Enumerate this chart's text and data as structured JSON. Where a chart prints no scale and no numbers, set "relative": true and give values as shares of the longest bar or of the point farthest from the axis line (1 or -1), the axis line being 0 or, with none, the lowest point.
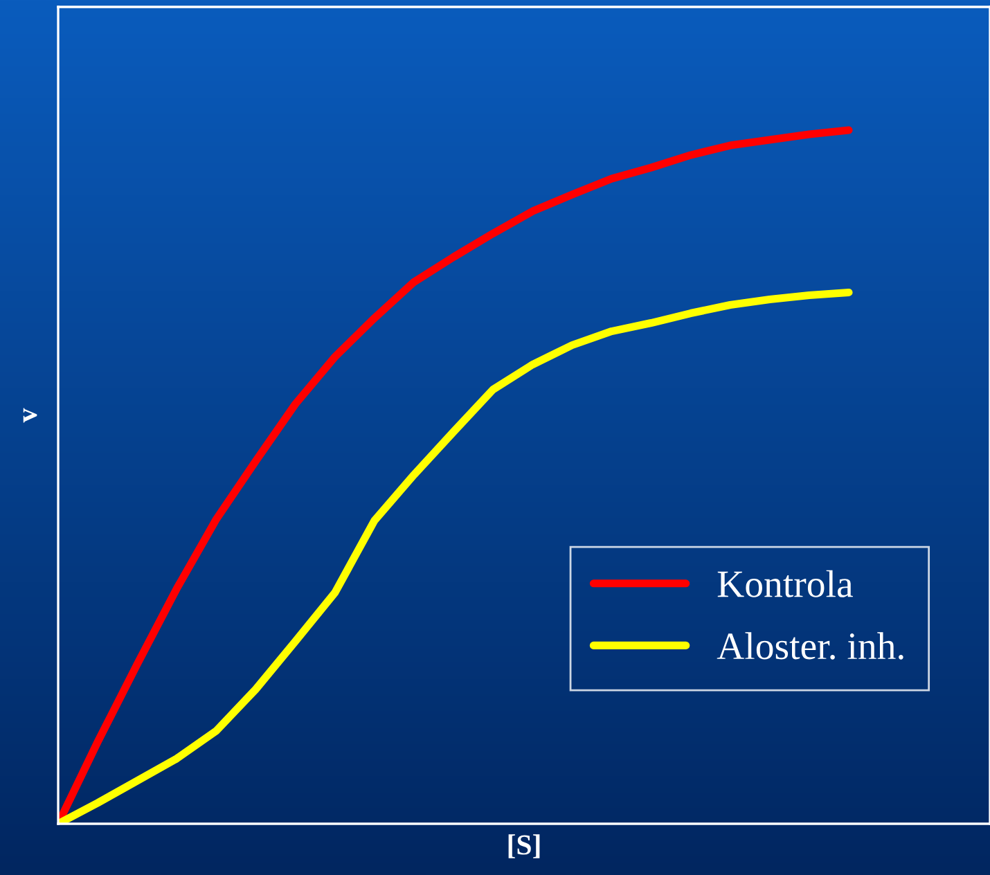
{
  "chart_data": {
    "type": "line",
    "relative": true,
    "xlabel": "[S]",
    "ylabel": "v",
    "categories": [
      null,
      null,
      null,
      null,
      null,
      null,
      null,
      null,
      null,
      null,
      null,
      null,
      null,
      null,
      null,
      null,
      null,
      null,
      null,
      null,
      null
    ],
    "series": [
      {
        "name": "Kontrola",
        "color": "#ff0000",
        "values": [
          0,
          0.118,
          0.23,
          0.339,
          0.439,
          0.523,
          0.605,
          0.673,
          0.729,
          0.781,
          0.817,
          0.851,
          0.883,
          0.907,
          0.93,
          0.946,
          0.964,
          0.978,
          0.986,
          0.994,
          1
        ]
      },
      {
        "name": "Aloster. inh.",
        "color": "#ffff00",
        "values": [
          0,
          0.03,
          0.062,
          0.094,
          0.134,
          0.194,
          0.263,
          0.333,
          0.437,
          0.503,
          0.565,
          0.626,
          0.662,
          0.69,
          0.71,
          0.722,
          0.736,
          0.748,
          0.756,
          0.762,
          0.766
        ]
      }
    ],
    "legend": "bottom right",
    "grid": false,
    "marker": "none",
    "line_style": "solid"
  }
}
